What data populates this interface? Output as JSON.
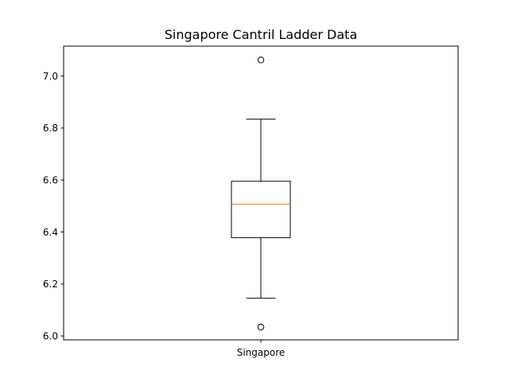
{
  "chart_data": {
    "type": "box",
    "title": "Singapore Cantril Ladder Data",
    "xlabel": "",
    "ylabel": "",
    "ylim": [
      5.985,
      7.115
    ],
    "yticks": [
      6.0,
      6.2,
      6.4,
      6.6,
      6.8,
      7.0
    ],
    "ytick_labels": [
      "6.0",
      "6.2",
      "6.4",
      "6.6",
      "6.8",
      "7.0"
    ],
    "categories": [
      "Singapore"
    ],
    "boxes": [
      {
        "category": "Singapore",
        "whisker_low": 6.145,
        "q1": 6.378,
        "median": 6.507,
        "q3": 6.595,
        "whisker_high": 6.834,
        "outliers": [
          7.062,
          6.034
        ]
      }
    ],
    "colors": {
      "box": "#000000",
      "median": "#ff7f0e",
      "axes": "#000000"
    },
    "grid": false
  }
}
